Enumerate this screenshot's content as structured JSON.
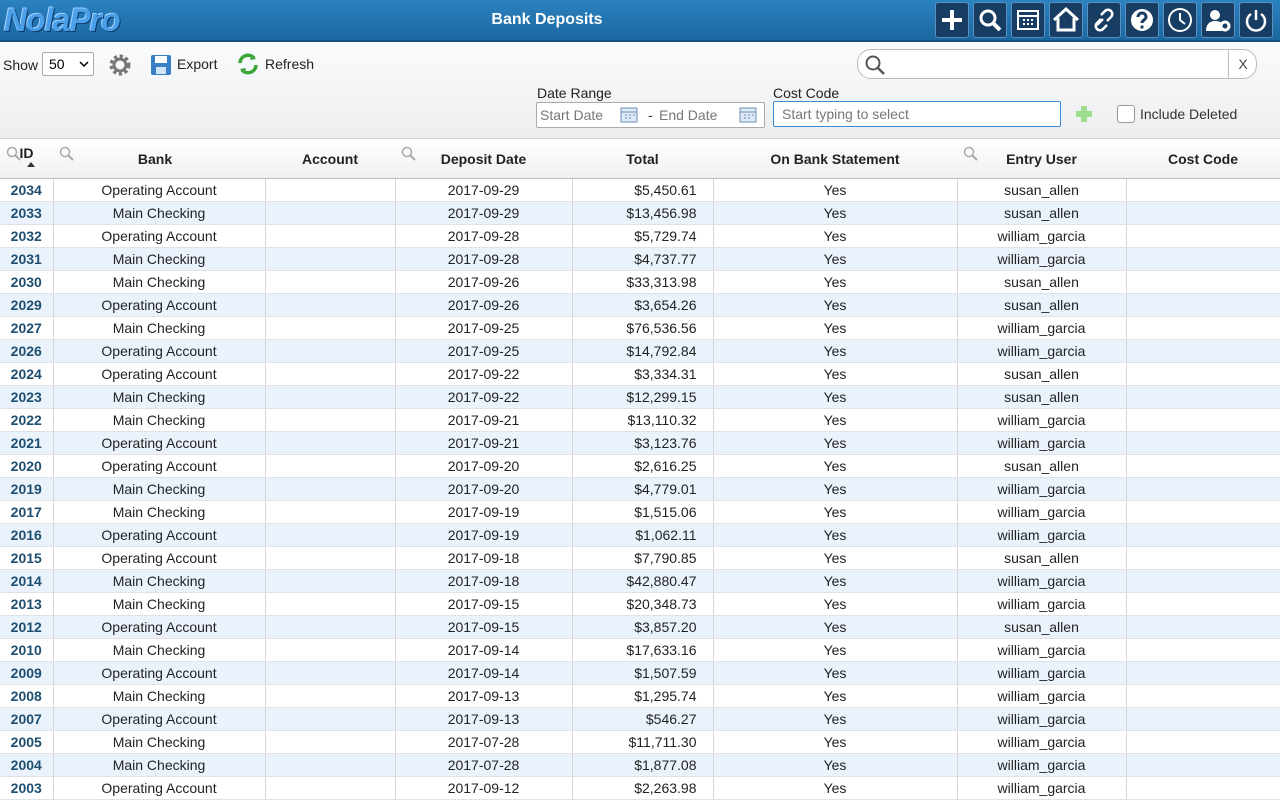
{
  "header": {
    "logo": "NolaPro",
    "title": "Bank Deposits"
  },
  "toolbar": {
    "show_label": "Show",
    "page_size": "50",
    "export": "Export",
    "refresh": "Refresh",
    "search_clear": "X"
  },
  "filters": {
    "date_range_label": "Date Range",
    "start_date": "Start Date",
    "separator": "-",
    "end_date": "End Date",
    "cost_code_label": "Cost Code",
    "cost_code_placeholder": "Start typing to select",
    "include_deleted": "Include Deleted"
  },
  "table": {
    "columns": [
      "ID",
      "Bank",
      "Account",
      "Deposit Date",
      "Total",
      "On Bank Statement",
      "Entry User",
      "Cost Code"
    ],
    "rows": [
      [
        "2034",
        "Operating Account",
        "2017-09-29",
        "$5,450.61",
        "Yes",
        "susan_allen"
      ],
      [
        "2033",
        "Main Checking",
        "2017-09-29",
        "$13,456.98",
        "Yes",
        "susan_allen"
      ],
      [
        "2032",
        "Operating Account",
        "2017-09-28",
        "$5,729.74",
        "Yes",
        "william_garcia"
      ],
      [
        "2031",
        "Main Checking",
        "2017-09-28",
        "$4,737.77",
        "Yes",
        "william_garcia"
      ],
      [
        "2030",
        "Main Checking",
        "2017-09-26",
        "$33,313.98",
        "Yes",
        "susan_allen"
      ],
      [
        "2029",
        "Operating Account",
        "2017-09-26",
        "$3,654.26",
        "Yes",
        "susan_allen"
      ],
      [
        "2027",
        "Main Checking",
        "2017-09-25",
        "$76,536.56",
        "Yes",
        "william_garcia"
      ],
      [
        "2026",
        "Operating Account",
        "2017-09-25",
        "$14,792.84",
        "Yes",
        "william_garcia"
      ],
      [
        "2024",
        "Operating Account",
        "2017-09-22",
        "$3,334.31",
        "Yes",
        "susan_allen"
      ],
      [
        "2023",
        "Main Checking",
        "2017-09-22",
        "$12,299.15",
        "Yes",
        "susan_allen"
      ],
      [
        "2022",
        "Main Checking",
        "2017-09-21",
        "$13,110.32",
        "Yes",
        "william_garcia"
      ],
      [
        "2021",
        "Operating Account",
        "2017-09-21",
        "$3,123.76",
        "Yes",
        "william_garcia"
      ],
      [
        "2020",
        "Operating Account",
        "2017-09-20",
        "$2,616.25",
        "Yes",
        "susan_allen"
      ],
      [
        "2019",
        "Main Checking",
        "2017-09-20",
        "$4,779.01",
        "Yes",
        "william_garcia"
      ],
      [
        "2017",
        "Main Checking",
        "2017-09-19",
        "$1,515.06",
        "Yes",
        "william_garcia"
      ],
      [
        "2016",
        "Operating Account",
        "2017-09-19",
        "$1,062.11",
        "Yes",
        "william_garcia"
      ],
      [
        "2015",
        "Operating Account",
        "2017-09-18",
        "$7,790.85",
        "Yes",
        "susan_allen"
      ],
      [
        "2014",
        "Main Checking",
        "2017-09-18",
        "$42,880.47",
        "Yes",
        "william_garcia"
      ],
      [
        "2013",
        "Main Checking",
        "2017-09-15",
        "$20,348.73",
        "Yes",
        "william_garcia"
      ],
      [
        "2012",
        "Operating Account",
        "2017-09-15",
        "$3,857.20",
        "Yes",
        "susan_allen"
      ],
      [
        "2010",
        "Main Checking",
        "2017-09-14",
        "$17,633.16",
        "Yes",
        "william_garcia"
      ],
      [
        "2009",
        "Operating Account",
        "2017-09-14",
        "$1,507.59",
        "Yes",
        "william_garcia"
      ],
      [
        "2008",
        "Main Checking",
        "2017-09-13",
        "$1,295.74",
        "Yes",
        "william_garcia"
      ],
      [
        "2007",
        "Operating Account",
        "2017-09-13",
        "$546.27",
        "Yes",
        "william_garcia"
      ],
      [
        "2005",
        "Main Checking",
        "2017-07-28",
        "$11,711.30",
        "Yes",
        "william_garcia"
      ],
      [
        "2004",
        "Main Checking",
        "2017-07-28",
        "$1,877.08",
        "Yes",
        "william_garcia"
      ],
      [
        "2003",
        "Operating Account",
        "2017-09-12",
        "$2,263.98",
        "Yes",
        "william_garcia"
      ]
    ]
  }
}
